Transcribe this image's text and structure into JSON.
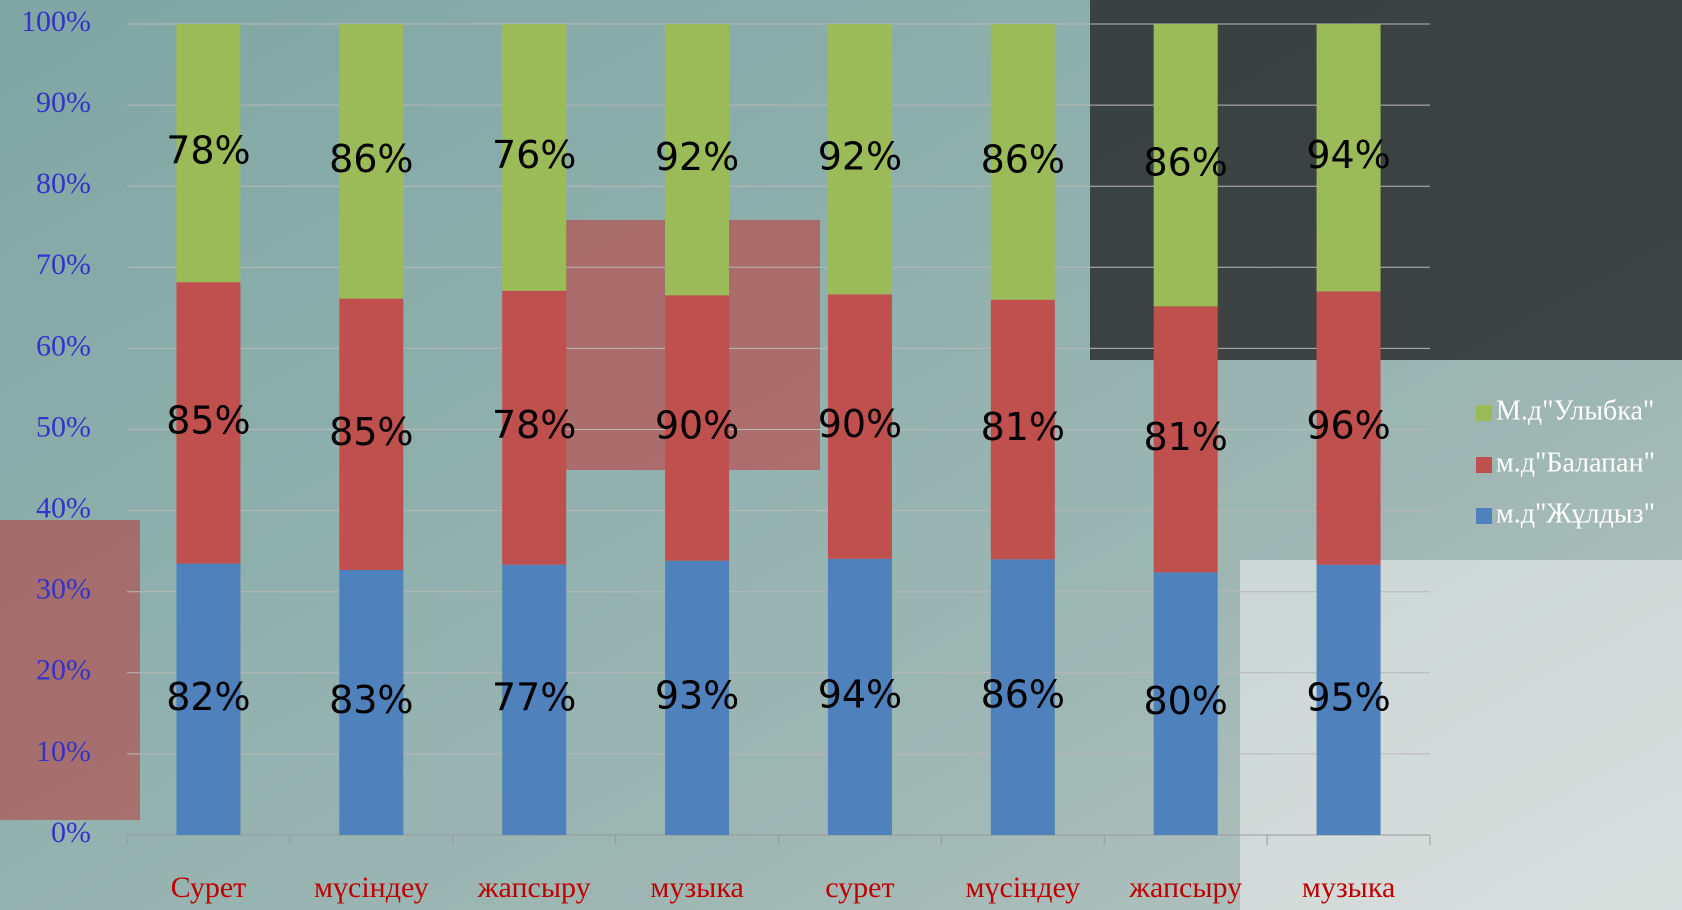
{
  "chart_data": {
    "type": "bar",
    "stacking": "percent",
    "categories": [
      "Сурет",
      "мүсіндеу",
      "жапсыру",
      "музыка",
      "сурет",
      "мүсіндеу",
      "жапсыру",
      "музыка"
    ],
    "series": [
      {
        "name": "м.д\"Жұлдыз\"",
        "color": "#4f81bd",
        "values": [
          82,
          83,
          77,
          93,
          94,
          86,
          80,
          95
        ],
        "value_labels": [
          "82%",
          "83%",
          "77%",
          "93%",
          "94%",
          "86%",
          "80%",
          "95%"
        ]
      },
      {
        "name": "м.д\"Балапан\"",
        "color": "#c0504d",
        "values": [
          85,
          85,
          78,
          90,
          90,
          81,
          81,
          96
        ],
        "value_labels": [
          "85%",
          "85%",
          "78%",
          "90%",
          "90%",
          "81%",
          "81%",
          "96%"
        ]
      },
      {
        "name": "М.д\"Улыбка\"",
        "color": "#9bbb59",
        "values": [
          78,
          86,
          76,
          92,
          92,
          86,
          86,
          94
        ],
        "value_labels": [
          "78%",
          "86%",
          "76%",
          "92%",
          "92%",
          "86%",
          "86%",
          "94%"
        ]
      }
    ],
    "ylim": [
      0,
      100
    ],
    "yticks": [
      {
        "value": 0,
        "label": "0%"
      },
      {
        "value": 10,
        "label": "10%"
      },
      {
        "value": 20,
        "label": "20%"
      },
      {
        "value": 30,
        "label": "30%"
      },
      {
        "value": 40,
        "label": "40%"
      },
      {
        "value": 50,
        "label": "50%"
      },
      {
        "value": 60,
        "label": "60%"
      },
      {
        "value": 70,
        "label": "70%"
      },
      {
        "value": 80,
        "label": "80%"
      },
      {
        "value": 90,
        "label": "90%"
      },
      {
        "value": 100,
        "label": "100%"
      }
    ],
    "grid": true,
    "legend": "right"
  }
}
